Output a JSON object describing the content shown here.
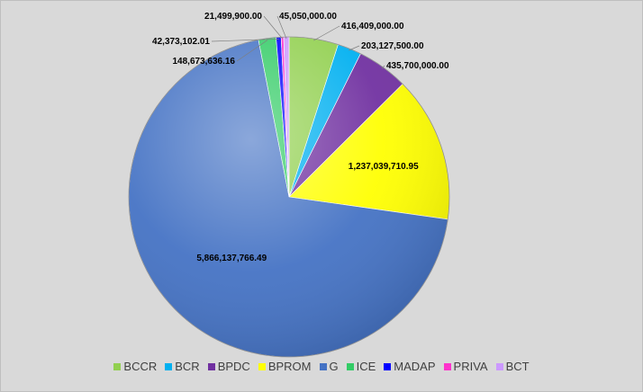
{
  "chart_data": {
    "type": "pie",
    "title": "",
    "categories": [
      "BCCR",
      "BCR",
      "BPDC",
      "BPROM",
      "G",
      "ICE",
      "MADAP",
      "PRIVA",
      "BCT"
    ],
    "values": [
      416409000.0,
      203127500.0,
      435700000.0,
      1237039710.95,
      5866137766.49,
      148673636.16,
      42373102.01,
      21499900.0,
      45050000.0
    ],
    "data_labels": [
      "416,409,000.00",
      "203,127,500.00",
      "435,700,000.00",
      "1,237,039,710.95",
      "5,866,137,766.49",
      "148,673,636.16",
      "42,373,102.01",
      "21,499,900.00",
      "45,050,000.00"
    ],
    "colors": [
      "#92d050",
      "#00b0f0",
      "#7030a0",
      "#ffff00",
      "#4472c4",
      "#33cc66",
      "#0000ff",
      "#ff33cc",
      "#cc99ff"
    ],
    "legend_position": "bottom",
    "start_angle_deg": 0
  }
}
